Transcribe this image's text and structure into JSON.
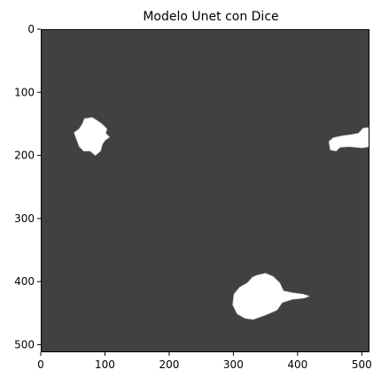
{
  "chart_data": {
    "type": "heatmap",
    "title": "Modelo Unet con Dice",
    "xlabel": "",
    "ylabel": "",
    "xlim": [
      0,
      512
    ],
    "ylim": [
      512,
      0
    ],
    "x_ticks": [
      0,
      100,
      200,
      300,
      400,
      500
    ],
    "y_ticks": [
      0,
      100,
      200,
      300,
      400,
      500
    ],
    "x_tick_labels": [
      "0",
      "100",
      "200",
      "300",
      "400",
      "500"
    ],
    "y_tick_labels": [
      "0",
      "100",
      "200",
      "300",
      "400",
      "500"
    ],
    "background_color": "#414141",
    "mask_color": "#ffffff",
    "regions": [
      {
        "name": "mask-region-left",
        "outline": [
          [
            68,
            142
          ],
          [
            80,
            140
          ],
          [
            88,
            145
          ],
          [
            95,
            150
          ],
          [
            103,
            158
          ],
          [
            101,
            165
          ],
          [
            107,
            171
          ],
          [
            100,
            176
          ],
          [
            96,
            182
          ],
          [
            93,
            193
          ],
          [
            85,
            200
          ],
          [
            77,
            193
          ],
          [
            67,
            193
          ],
          [
            60,
            186
          ],
          [
            56,
            175
          ],
          [
            52,
            164
          ],
          [
            60,
            158
          ],
          [
            65,
            150
          ]
        ]
      },
      {
        "name": "mask-region-right",
        "outline": [
          [
            456,
            172
          ],
          [
            470,
            169
          ],
          [
            484,
            167
          ],
          [
            495,
            165
          ],
          [
            502,
            157
          ],
          [
            512,
            156
          ],
          [
            512,
            186
          ],
          [
            501,
            188
          ],
          [
            480,
            186
          ],
          [
            466,
            187
          ],
          [
            460,
            193
          ],
          [
            451,
            191
          ],
          [
            449,
            178
          ]
        ]
      },
      {
        "name": "mask-region-bottom",
        "outline": [
          [
            337,
            390
          ],
          [
            350,
            387
          ],
          [
            362,
            392
          ],
          [
            372,
            402
          ],
          [
            378,
            415
          ],
          [
            393,
            418
          ],
          [
            408,
            420
          ],
          [
            418,
            423
          ],
          [
            410,
            426
          ],
          [
            392,
            428
          ],
          [
            376,
            433
          ],
          [
            368,
            445
          ],
          [
            350,
            453
          ],
          [
            331,
            460
          ],
          [
            318,
            458
          ],
          [
            306,
            451
          ],
          [
            299,
            437
          ],
          [
            301,
            420
          ],
          [
            310,
            409
          ],
          [
            322,
            402
          ],
          [
            330,
            393
          ]
        ]
      }
    ]
  }
}
